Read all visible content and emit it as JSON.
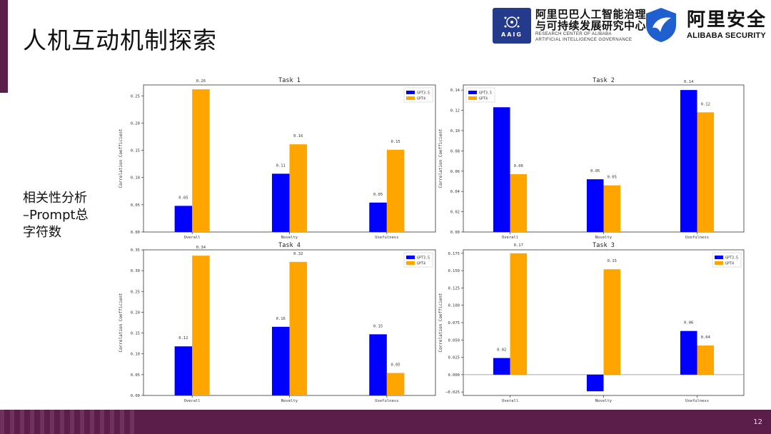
{
  "slide": {
    "title": "人机互动机制探索",
    "side_label_lines": [
      "相关性分析",
      "–Prompt总",
      "字符数"
    ],
    "page_number": "12"
  },
  "logos": {
    "aaig": {
      "badge_text": "AAIG",
      "cn_line1": "阿里巴巴人工智能治理",
      "cn_line2": "与可持续发展研究中心",
      "en_line1": "RESEARCH CENTER OF ALIBABA",
      "en_line2": "ARTIFICIAL INTELLIGENCE GOVERNANCE"
    },
    "alibaba_security": {
      "cn": "阿里安全",
      "en": "ALIBABA SECURITY"
    }
  },
  "colors": {
    "gpt35": "#0000ff",
    "gpt4": "#ffa500",
    "accent": "#5b1d4a",
    "aaig_blue": "#243a8c",
    "alisec_blue": "#1f5fd0"
  },
  "chart_data": [
    {
      "type": "bar",
      "title": "Task 1",
      "categories": [
        "Overall",
        "Novelty",
        "Usefulness"
      ],
      "ylabel": "Correlation Coefficient",
      "ylim": [
        0,
        0.27
      ],
      "yticks": [
        "0.00",
        "0.05",
        "0.10",
        "0.15",
        "0.20",
        "0.25"
      ],
      "legend": "top-right",
      "series": [
        {
          "name": "GPT3.5",
          "values": [
            0.048,
            0.107,
            0.054
          ],
          "labels": [
            "0.05",
            "0.11",
            "0.05"
          ]
        },
        {
          "name": "GPT4",
          "values": [
            0.262,
            0.161,
            0.151
          ],
          "labels": [
            "0.26",
            "0.16",
            "0.15"
          ]
        }
      ]
    },
    {
      "type": "bar",
      "title": "Task 2",
      "categories": [
        "Overall",
        "Novelty",
        "Usefulness"
      ],
      "ylabel": "Correlation Coefficient",
      "ylim": [
        0,
        0.145
      ],
      "yticks": [
        "0.00",
        "0.02",
        "0.04",
        "0.06",
        "0.08",
        "0.10",
        "0.12",
        "0.14"
      ],
      "legend": "top-left",
      "series": [
        {
          "name": "GPT3.5",
          "values": [
            0.123,
            0.052,
            0.14
          ],
          "labels": [
            "",
            "0.05",
            "0.14"
          ]
        },
        {
          "name": "GPT4",
          "values": [
            0.057,
            0.046,
            0.118
          ],
          "labels": [
            "0.06",
            "0.05",
            "0.12"
          ]
        }
      ]
    },
    {
      "type": "bar",
      "title": "Task 4",
      "categories": [
        "Overall",
        "Novelty",
        "Usefulness"
      ],
      "ylabel": "Correlation Coefficient",
      "ylim": [
        0,
        0.35
      ],
      "yticks": [
        "0.00",
        "0.05",
        "0.10",
        "0.15",
        "0.20",
        "0.25",
        "0.30",
        "0.35"
      ],
      "legend": "top-right",
      "series": [
        {
          "name": "GPT3.5",
          "values": [
            0.118,
            0.165,
            0.147
          ],
          "labels": [
            "0.12",
            "0.16",
            "0.15"
          ]
        },
        {
          "name": "GPT4",
          "values": [
            0.336,
            0.321,
            0.054
          ],
          "labels": [
            "0.34",
            "0.32",
            "0.05"
          ]
        }
      ]
    },
    {
      "type": "bar",
      "title": "Task 3",
      "categories": [
        "Overall",
        "Novelty",
        "Usefulness"
      ],
      "ylabel": "Correlation Coefficient",
      "ylim": [
        -0.03,
        0.18
      ],
      "yticks": [
        "−0.025",
        "0.000",
        "0.025",
        "0.050",
        "0.075",
        "0.100",
        "0.125",
        "0.150",
        "0.175"
      ],
      "legend": "top-right",
      "series": [
        {
          "name": "GPT3.5",
          "values": [
            0.024,
            -0.024,
            0.063
          ],
          "labels": [
            "0.02",
            "-0.02",
            "0.06"
          ]
        },
        {
          "name": "GPT4",
          "values": [
            0.175,
            0.152,
            0.042
          ],
          "labels": [
            "0.17",
            "0.15",
            "0.04"
          ]
        }
      ]
    }
  ]
}
